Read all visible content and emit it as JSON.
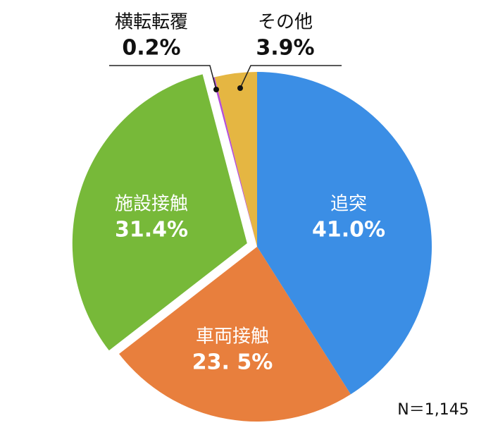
{
  "chart_data": {
    "type": "pie",
    "categories": [
      "追突",
      "車両接触",
      "施設接触",
      "横転転覆",
      "その他"
    ],
    "values": [
      41.0,
      23.5,
      31.4,
      0.2,
      3.9
    ],
    "value_labels": [
      "41.0%",
      "23. 5%",
      "31.4%",
      "0.2%",
      "3.9%"
    ],
    "colors": [
      "#3b8ee5",
      "#e87f3d",
      "#77b939",
      "#b44fd8",
      "#e5b642"
    ],
    "exploded": [
      false,
      false,
      true,
      false,
      false
    ],
    "annotation": "N＝1,145"
  }
}
